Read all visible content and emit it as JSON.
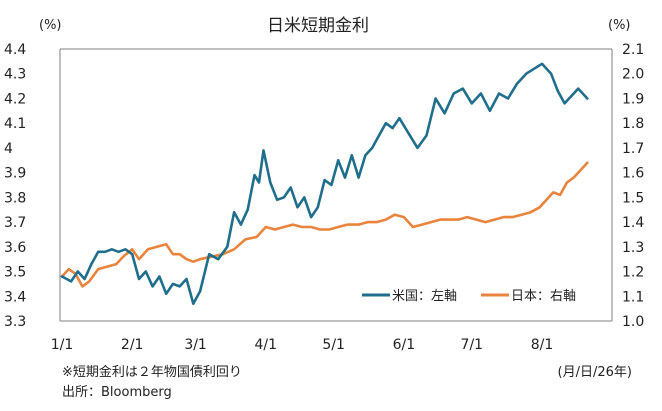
{
  "chart_data": {
    "type": "line",
    "title": "日米短期金利",
    "y_left_unit": "(%)",
    "y_right_unit": "(%)",
    "y_left": {
      "min": 3.3,
      "max": 4.4,
      "ticks": [
        "3.3",
        "3.4",
        "3.5",
        "3.6",
        "3.7",
        "3.8",
        "3.9",
        "4",
        "4.1",
        "4.2",
        "4.3",
        "4.4"
      ]
    },
    "y_right": {
      "min": 1.0,
      "max": 2.1,
      "ticks": [
        "1.0",
        "1.1",
        "1.2",
        "1.3",
        "1.4",
        "1.5",
        "1.6",
        "1.7",
        "1.8",
        "1.9",
        "2.0",
        "2.1"
      ]
    },
    "x_ticks": [
      "1/1",
      "2/1",
      "3/1",
      "4/1",
      "5/1",
      "6/1",
      "7/1",
      "8/1"
    ],
    "x_axis_unit": "(月/日/26年)",
    "legend_position": "bottom-right",
    "grid": false,
    "series": [
      {
        "name": "米国：左軸",
        "axis": "left",
        "color": "#1f6e8c",
        "points": [
          [
            "1/1",
            3.48
          ],
          [
            "1/5",
            3.46
          ],
          [
            "1/8",
            3.5
          ],
          [
            "1/11",
            3.47
          ],
          [
            "1/14",
            3.53
          ],
          [
            "1/17",
            3.58
          ],
          [
            "1/20",
            3.58
          ],
          [
            "1/23",
            3.59
          ],
          [
            "1/26",
            3.58
          ],
          [
            "1/29",
            3.59
          ],
          [
            "2/1",
            3.57
          ],
          [
            "2/4",
            3.47
          ],
          [
            "2/7",
            3.5
          ],
          [
            "2/10",
            3.44
          ],
          [
            "2/13",
            3.48
          ],
          [
            "2/16",
            3.41
          ],
          [
            "2/19",
            3.45
          ],
          [
            "2/22",
            3.44
          ],
          [
            "2/25",
            3.47
          ],
          [
            "2/28",
            3.37
          ],
          [
            "3/3",
            3.42
          ],
          [
            "3/7",
            3.57
          ],
          [
            "3/11",
            3.55
          ],
          [
            "3/15",
            3.6
          ],
          [
            "3/18",
            3.74
          ],
          [
            "3/21",
            3.69
          ],
          [
            "3/24",
            3.75
          ],
          [
            "3/27",
            3.89
          ],
          [
            "3/29",
            3.86
          ],
          [
            "3/31",
            3.99
          ],
          [
            "4/3",
            3.86
          ],
          [
            "4/6",
            3.79
          ],
          [
            "4/9",
            3.8
          ],
          [
            "4/12",
            3.84
          ],
          [
            "4/15",
            3.76
          ],
          [
            "4/18",
            3.8
          ],
          [
            "4/21",
            3.72
          ],
          [
            "4/24",
            3.76
          ],
          [
            "4/27",
            3.87
          ],
          [
            "4/30",
            3.85
          ],
          [
            "5/3",
            3.95
          ],
          [
            "5/6",
            3.88
          ],
          [
            "5/9",
            3.97
          ],
          [
            "5/12",
            3.88
          ],
          [
            "5/15",
            3.97
          ],
          [
            "5/18",
            4.0
          ],
          [
            "5/21",
            4.05
          ],
          [
            "5/24",
            4.1
          ],
          [
            "5/27",
            4.08
          ],
          [
            "5/30",
            4.12
          ],
          [
            "6/3",
            4.06
          ],
          [
            "6/7",
            4.0
          ],
          [
            "6/11",
            4.05
          ],
          [
            "6/15",
            4.2
          ],
          [
            "6/19",
            4.14
          ],
          [
            "6/23",
            4.22
          ],
          [
            "6/27",
            4.24
          ],
          [
            "7/1",
            4.18
          ],
          [
            "7/5",
            4.22
          ],
          [
            "7/9",
            4.15
          ],
          [
            "7/13",
            4.22
          ],
          [
            "7/17",
            4.2
          ],
          [
            "7/21",
            4.26
          ],
          [
            "7/25",
            4.3
          ],
          [
            "8/1",
            4.34
          ],
          [
            "8/5",
            4.3
          ],
          [
            "8/8",
            4.23
          ],
          [
            "8/11",
            4.18
          ],
          [
            "8/14",
            4.21
          ],
          [
            "8/17",
            4.24
          ],
          [
            "8/21",
            4.2
          ]
        ]
      },
      {
        "name": "日本：右軸",
        "axis": "right",
        "color": "#e8843c",
        "points": [
          [
            "1/1",
            1.18
          ],
          [
            "1/4",
            1.21
          ],
          [
            "1/7",
            1.19
          ],
          [
            "1/10",
            1.14
          ],
          [
            "1/13",
            1.16
          ],
          [
            "1/17",
            1.21
          ],
          [
            "1/21",
            1.22
          ],
          [
            "1/25",
            1.23
          ],
          [
            "1/28",
            1.26
          ],
          [
            "2/1",
            1.29
          ],
          [
            "2/4",
            1.25
          ],
          [
            "2/8",
            1.29
          ],
          [
            "2/12",
            1.3
          ],
          [
            "2/16",
            1.31
          ],
          [
            "2/19",
            1.27
          ],
          [
            "2/22",
            1.27
          ],
          [
            "2/25",
            1.25
          ],
          [
            "2/28",
            1.24
          ],
          [
            "3/3",
            1.25
          ],
          [
            "3/8",
            1.26
          ],
          [
            "3/13",
            1.27
          ],
          [
            "3/18",
            1.29
          ],
          [
            "3/23",
            1.33
          ],
          [
            "3/28",
            1.34
          ],
          [
            "4/1",
            1.38
          ],
          [
            "4/5",
            1.37
          ],
          [
            "4/9",
            1.38
          ],
          [
            "4/13",
            1.39
          ],
          [
            "4/17",
            1.38
          ],
          [
            "4/21",
            1.38
          ],
          [
            "4/25",
            1.37
          ],
          [
            "4/29",
            1.37
          ],
          [
            "5/3",
            1.38
          ],
          [
            "5/7",
            1.39
          ],
          [
            "5/12",
            1.39
          ],
          [
            "5/16",
            1.4
          ],
          [
            "5/20",
            1.4
          ],
          [
            "5/24",
            1.41
          ],
          [
            "5/28",
            1.43
          ],
          [
            "6/1",
            1.42
          ],
          [
            "6/5",
            1.38
          ],
          [
            "6/9",
            1.39
          ],
          [
            "6/13",
            1.4
          ],
          [
            "6/17",
            1.41
          ],
          [
            "6/21",
            1.41
          ],
          [
            "6/25",
            1.41
          ],
          [
            "6/29",
            1.42
          ],
          [
            "7/3",
            1.41
          ],
          [
            "7/7",
            1.4
          ],
          [
            "7/11",
            1.41
          ],
          [
            "7/15",
            1.42
          ],
          [
            "7/19",
            1.42
          ],
          [
            "7/23",
            1.43
          ],
          [
            "7/27",
            1.44
          ],
          [
            "7/31",
            1.46
          ],
          [
            "8/3",
            1.49
          ],
          [
            "8/6",
            1.52
          ],
          [
            "8/9",
            1.51
          ],
          [
            "8/12",
            1.56
          ],
          [
            "8/15",
            1.58
          ],
          [
            "8/18",
            1.61
          ],
          [
            "8/21",
            1.64
          ]
        ]
      }
    ]
  }
}
